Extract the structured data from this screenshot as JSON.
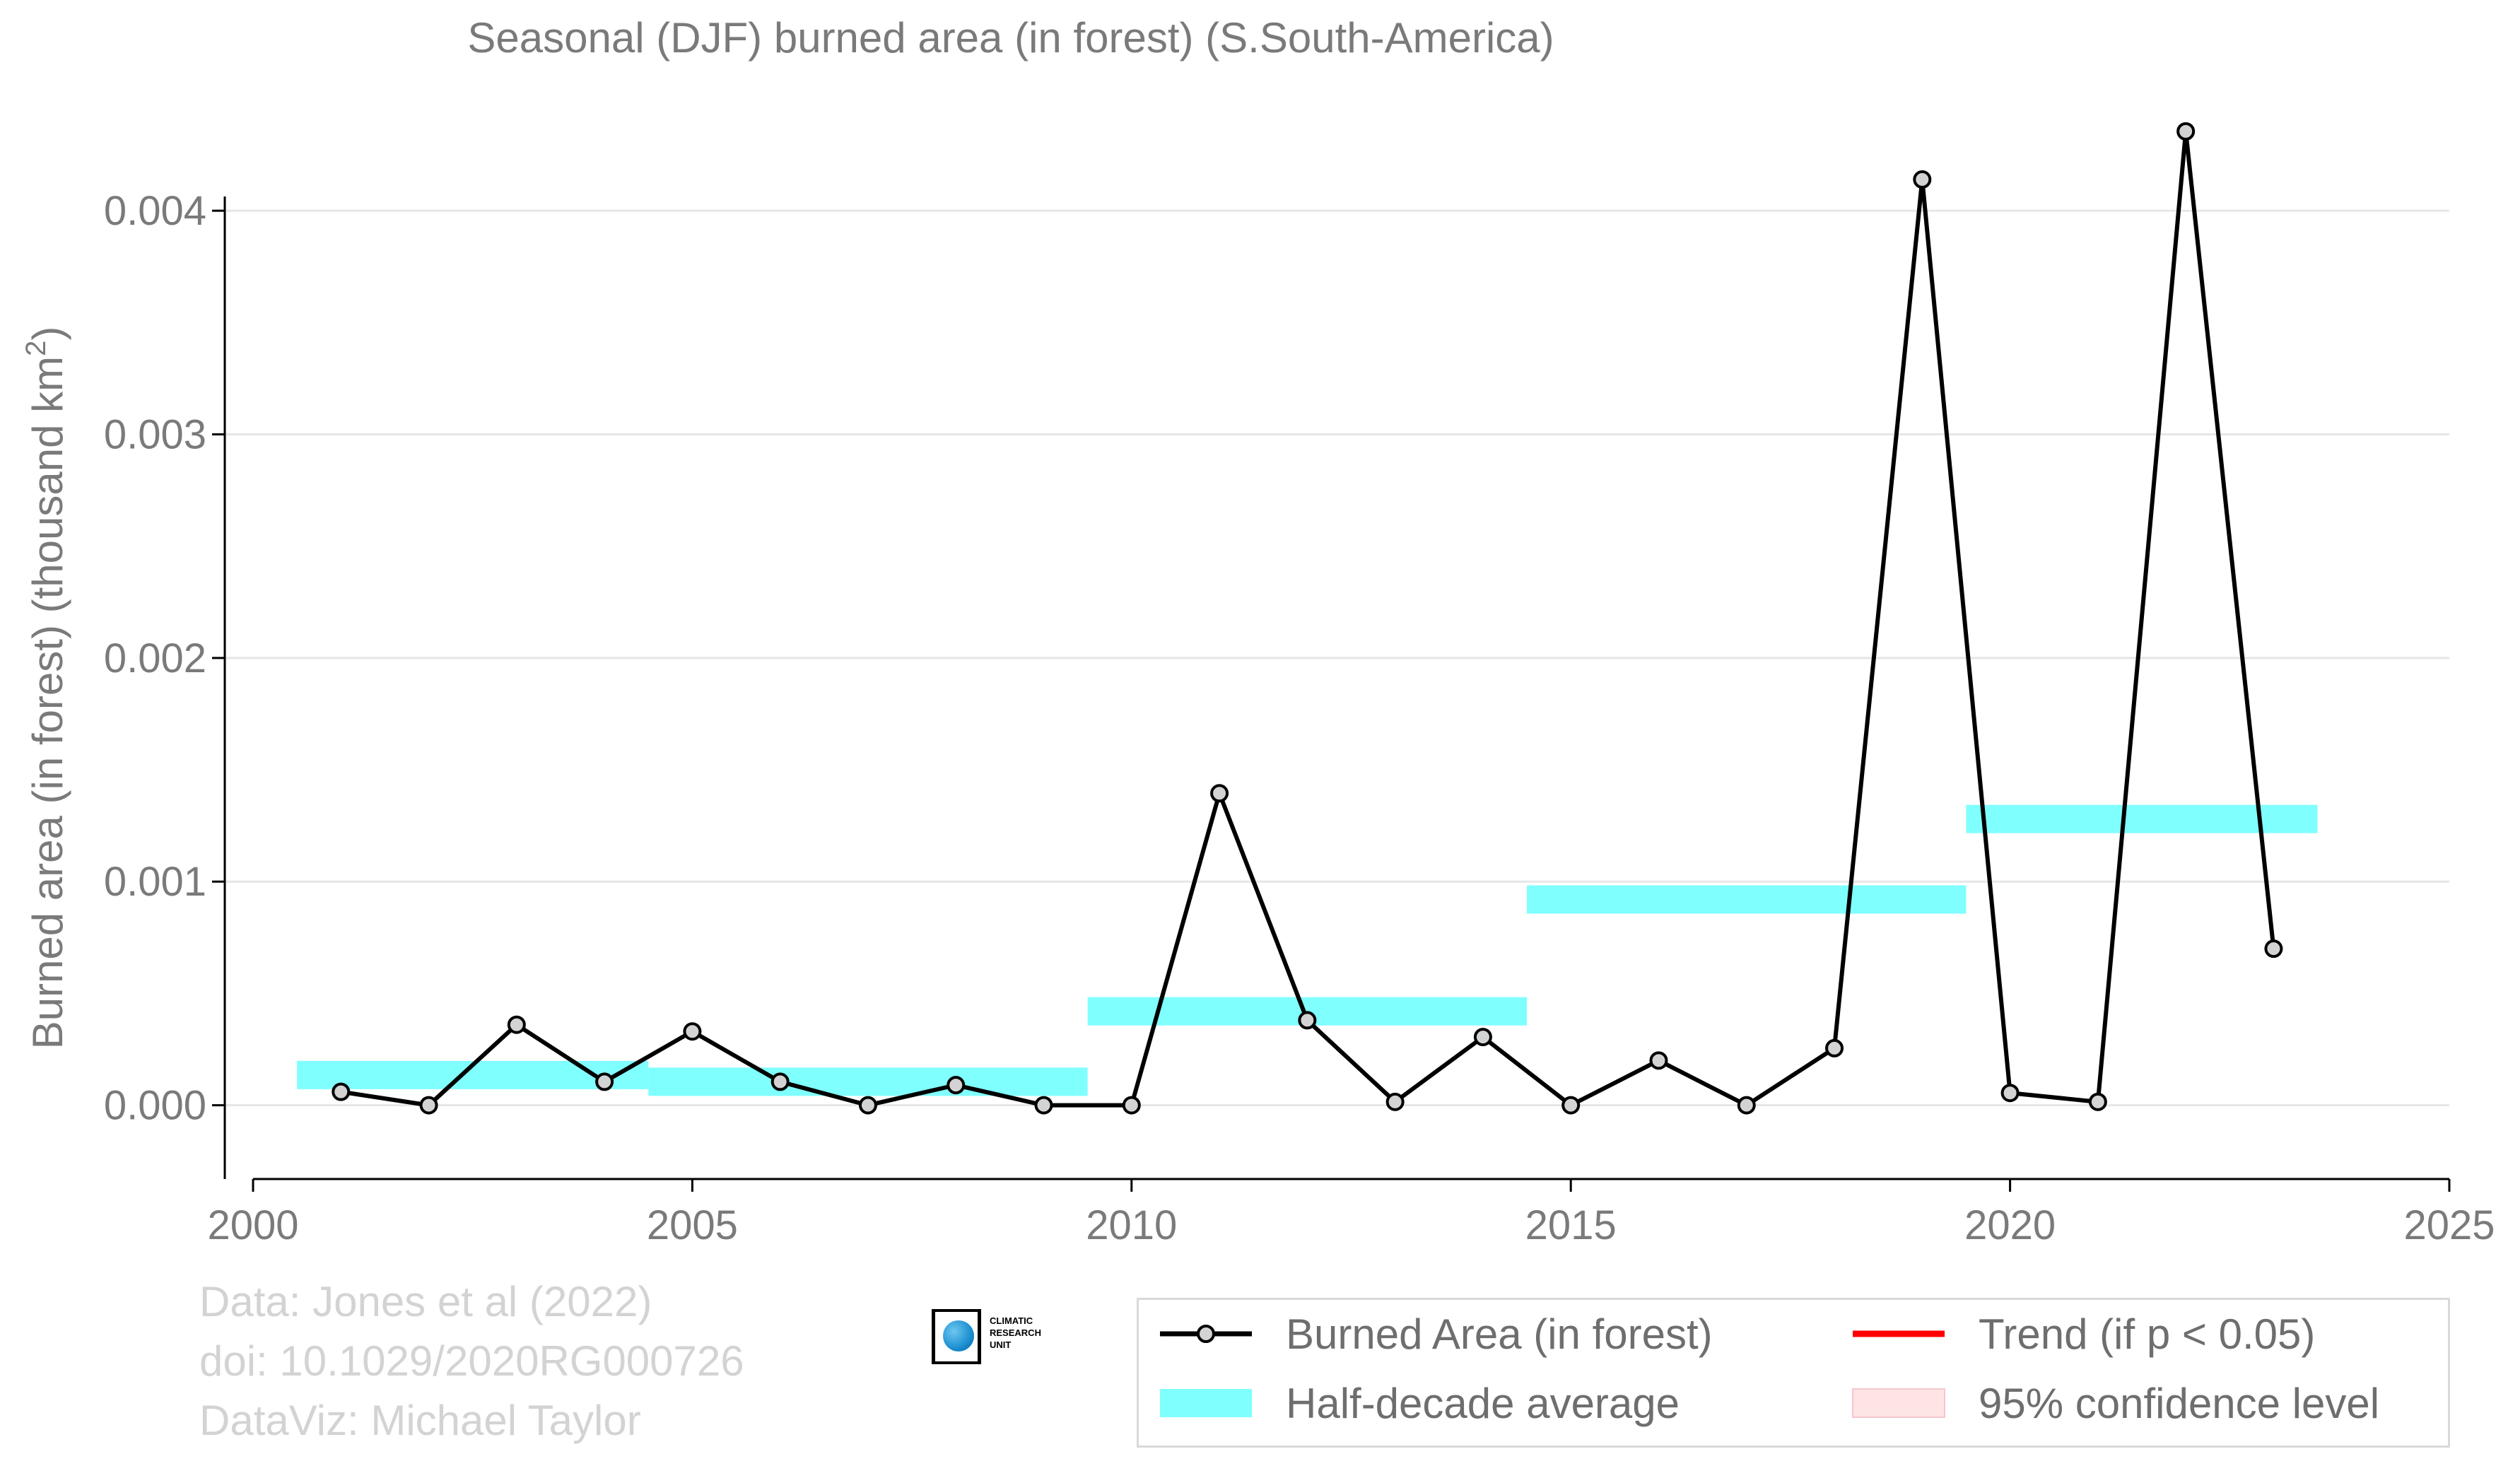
{
  "chart_data": {
    "type": "line",
    "title": "Seasonal (DJF) burned area (in forest) (S.South-America)",
    "ylabel": "Burned area (in forest) (thousand km",
    "ylabel_sup": "2",
    "ylabel_suffix": ")",
    "xlabel": "",
    "xlim": [
      2000,
      2025
    ],
    "ylim": [
      -0.00033,
      0.0045
    ],
    "x_ticks": [
      2000,
      2005,
      2010,
      2015,
      2020,
      2025
    ],
    "x_tick_labels": [
      "2000",
      "2005",
      "2010",
      "2015",
      "2020",
      "2025"
    ],
    "y_ticks": [
      0.0,
      0.001,
      0.002,
      0.003,
      0.004
    ],
    "y_tick_labels": [
      "0.000",
      "0.001",
      "0.002",
      "0.003",
      "0.004"
    ],
    "grid": "horizontal",
    "legend_position": "bottom-right",
    "series": [
      {
        "name": "Burned Area (in forest)",
        "color": "#000000",
        "marker_fill": "#d3d3d3",
        "x": [
          2001,
          2002,
          2003,
          2004,
          2005,
          2006,
          2007,
          2008,
          2009,
          2010,
          2011,
          2012,
          2013,
          2014,
          2015,
          2016,
          2017,
          2018,
          2019,
          2020,
          2021,
          2022,
          2023
        ],
        "values": [
          6e-05,
          0.0,
          0.00036,
          0.000105,
          0.00033,
          0.000105,
          0.0,
          9e-05,
          0.0,
          0.0,
          0.001395,
          0.00038,
          1.5e-05,
          0.000305,
          0.0,
          0.0002,
          0.0,
          0.000255,
          0.00414,
          5.5e-05,
          1.5e-05,
          0.004355,
          0.0007
        ]
      },
      {
        "name": "Half-decade average",
        "color": "#80ffff",
        "segments": [
          {
            "x_start": 2000.5,
            "x_end": 2004.5,
            "value": 0.000135
          },
          {
            "x_start": 2004.5,
            "x_end": 2009.5,
            "value": 0.000105
          },
          {
            "x_start": 2009.5,
            "x_end": 2014.5,
            "value": 0.00042
          },
          {
            "x_start": 2014.5,
            "x_end": 2019.5,
            "value": 0.00092
          },
          {
            "x_start": 2019.5,
            "x_end": 2023.5,
            "value": 0.00128
          }
        ]
      }
    ],
    "legend": [
      {
        "label": "Burned Area (in forest)",
        "kind": "line-marker",
        "color": "#000000"
      },
      {
        "label": "Trend (if p < 0.05)",
        "kind": "line",
        "color": "#ff0000"
      },
      {
        "label": "Half-decade average",
        "kind": "band",
        "color": "#80ffff"
      },
      {
        "label": "95% confidence level",
        "kind": "band",
        "color": "#ffe4e6"
      }
    ]
  },
  "credits": {
    "line1": "Data: Jones et al (2022)",
    "line2": "doi: 10.1029/2020RG000726",
    "line3": "DataViz: Michael Taylor"
  },
  "logo": {
    "line1": "CLIMATIC",
    "line2": "RESEARCH",
    "line3": "UNIT"
  }
}
